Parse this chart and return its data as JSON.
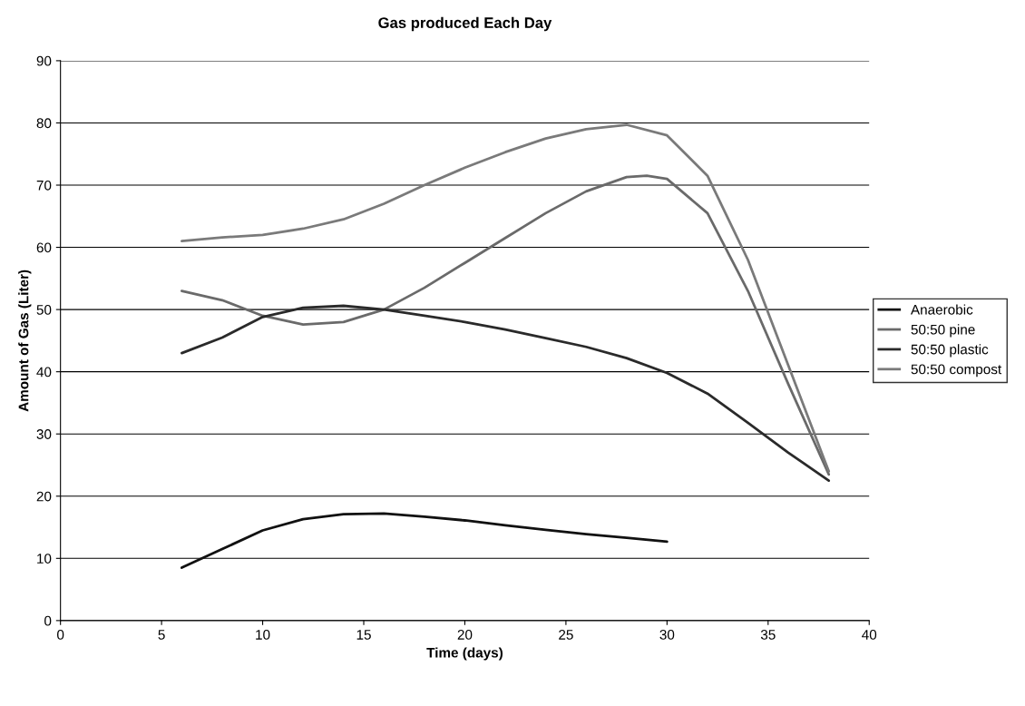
{
  "chart_data": {
    "type": "line",
    "title": "Gas produced Each Day",
    "xlabel": "Time (days)",
    "ylabel": "Amount of Gas (Liter)",
    "xlim": [
      0,
      40
    ],
    "xticks": [
      0,
      5,
      10,
      15,
      20,
      25,
      30,
      35,
      40
    ],
    "ylim": [
      0,
      90
    ],
    "yticks": [
      0,
      10,
      20,
      30,
      40,
      50,
      60,
      70,
      80,
      90
    ],
    "grid": "y",
    "legend": "right",
    "marker": "none",
    "line_style": "solid",
    "series": [
      {
        "name": "Anaerobic",
        "color": "#111111",
        "x": [
          6,
          8,
          10,
          12,
          14,
          16,
          18,
          20,
          22,
          24,
          26,
          28,
          30
        ],
        "values": [
          8.5,
          11.5,
          14.5,
          16.3,
          17.1,
          17.2,
          16.7,
          16.1,
          15.3,
          14.6,
          13.9,
          13.3,
          12.7
        ]
      },
      {
        "name": "50:50 pine",
        "color": "#6a6a6a",
        "x": [
          6,
          8,
          10,
          12,
          14,
          16,
          18,
          20,
          22,
          24,
          26,
          28,
          29,
          30,
          32,
          34,
          36,
          38
        ],
        "values": [
          53,
          51.5,
          49,
          47.6,
          48,
          50,
          53.5,
          57.5,
          61.5,
          65.5,
          69,
          71.3,
          71.5,
          71,
          65.5,
          53,
          38,
          23.5
        ]
      },
      {
        "name": "50:50 plastic",
        "color": "#2a2a2a",
        "x": [
          6,
          8,
          10,
          12,
          14,
          16,
          18,
          20,
          22,
          24,
          26,
          28,
          30,
          32,
          34,
          36,
          38
        ],
        "values": [
          43,
          45.5,
          48.8,
          50.3,
          50.6,
          50,
          49,
          48,
          46.8,
          45.4,
          44,
          42.2,
          39.8,
          36.5,
          31.8,
          27,
          22.5
        ]
      },
      {
        "name": "50:50 compost",
        "color": "#7a7a7a",
        "x": [
          6,
          8,
          10,
          12,
          14,
          16,
          18,
          20,
          22,
          24,
          26,
          28,
          30,
          32,
          34,
          36,
          38
        ],
        "values": [
          61,
          61.6,
          62,
          63,
          64.5,
          67,
          70,
          72.8,
          75.3,
          77.5,
          79,
          79.7,
          78,
          71.5,
          58,
          41,
          24
        ]
      }
    ]
  }
}
